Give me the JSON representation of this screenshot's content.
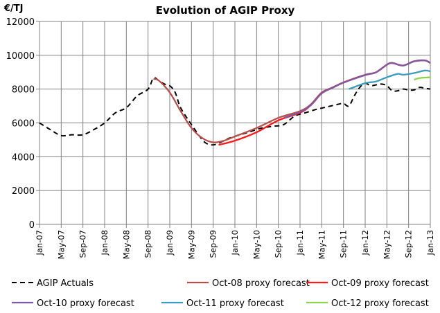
{
  "chart_data": {
    "type": "line",
    "title": "Evolution of AGIP Proxy",
    "ylabel": "€/TJ",
    "xlabel": "",
    "ylim": [
      0,
      12000
    ],
    "yticks": [
      0,
      2000,
      4000,
      6000,
      8000,
      10000,
      12000
    ],
    "xlim": [
      "2007-01",
      "2013-01"
    ],
    "xticks": [
      {
        "x": "2007-01",
        "label": "Jan-07"
      },
      {
        "x": "2007-05",
        "label": "May-07"
      },
      {
        "x": "2007-09",
        "label": "Sep-07"
      },
      {
        "x": "2008-01",
        "label": "Jan-08"
      },
      {
        "x": "2008-05",
        "label": "May-08"
      },
      {
        "x": "2008-09",
        "label": "Sep-08"
      },
      {
        "x": "2009-01",
        "label": "Jan-09"
      },
      {
        "x": "2009-05",
        "label": "May-09"
      },
      {
        "x": "2009-09",
        "label": "Sep-09"
      },
      {
        "x": "2010-01",
        "label": "Jan-10"
      },
      {
        "x": "2010-05",
        "label": "May-10"
      },
      {
        "x": "2010-09",
        "label": "Sep-10"
      },
      {
        "x": "2011-01",
        "label": "Jan-11"
      },
      {
        "x": "2011-05",
        "label": "May-11"
      },
      {
        "x": "2011-09",
        "label": "Sep-11"
      },
      {
        "x": "2012-01",
        "label": "Jan-12"
      },
      {
        "x": "2012-05",
        "label": "May-12"
      },
      {
        "x": "2012-09",
        "label": "Sep-12"
      },
      {
        "x": "2013-01",
        "label": "Jan-13"
      }
    ],
    "grid": true,
    "legend_position": "bottom",
    "series": [
      {
        "name": "AGIP Actuals",
        "color": "#000000",
        "dashed": true,
        "points": [
          [
            "2007-01",
            6000
          ],
          [
            "2007-03",
            5600
          ],
          [
            "2007-05",
            5250
          ],
          [
            "2007-07",
            5300
          ],
          [
            "2007-09",
            5300
          ],
          [
            "2007-11",
            5600
          ],
          [
            "2008-01",
            6000
          ],
          [
            "2008-03",
            6600
          ],
          [
            "2008-05",
            6900
          ],
          [
            "2008-07",
            7600
          ],
          [
            "2008-09",
            8000
          ],
          [
            "2008-10",
            8650
          ],
          [
            "2008-11",
            8500
          ],
          [
            "2008-12",
            8300
          ],
          [
            "2009-01",
            8200
          ],
          [
            "2009-02",
            7800
          ],
          [
            "2009-03",
            6900
          ],
          [
            "2009-05",
            5900
          ],
          [
            "2009-07",
            5000
          ],
          [
            "2009-08",
            4750
          ],
          [
            "2009-09",
            4700
          ],
          [
            "2009-10",
            4800
          ],
          [
            "2009-12",
            5100
          ],
          [
            "2010-02",
            5300
          ],
          [
            "2010-04",
            5500
          ],
          [
            "2010-06",
            5700
          ],
          [
            "2010-08",
            5800
          ],
          [
            "2010-10",
            5900
          ],
          [
            "2010-12",
            6400
          ],
          [
            "2011-02",
            6600
          ],
          [
            "2011-04",
            6800
          ],
          [
            "2011-06",
            6950
          ],
          [
            "2011-08",
            7100
          ],
          [
            "2011-09",
            7150
          ],
          [
            "2011-10",
            7000
          ],
          [
            "2011-11",
            7600
          ],
          [
            "2011-12",
            8100
          ],
          [
            "2012-01",
            8350
          ],
          [
            "2012-02",
            8200
          ],
          [
            "2012-03",
            8250
          ],
          [
            "2012-04",
            8300
          ],
          [
            "2012-05",
            8200
          ],
          [
            "2012-06",
            7900
          ],
          [
            "2012-07",
            7900
          ],
          [
            "2012-08",
            8000
          ],
          [
            "2012-09",
            7950
          ],
          [
            "2012-10",
            7950
          ],
          [
            "2012-11",
            8100
          ],
          [
            "2012-12",
            8050
          ],
          [
            "2013-01",
            8000
          ]
        ]
      },
      {
        "name": "Oct-08 proxy forecast",
        "color": "#b5504b",
        "points": [
          [
            "2008-10",
            8600
          ],
          [
            "2008-11",
            8500
          ],
          [
            "2009-01",
            7800
          ],
          [
            "2009-03",
            6700
          ],
          [
            "2009-05",
            5700
          ],
          [
            "2009-07",
            5100
          ],
          [
            "2009-09",
            4850
          ],
          [
            "2009-11",
            4950
          ],
          [
            "2010-01",
            5200
          ],
          [
            "2010-05",
            5700
          ],
          [
            "2010-09",
            6300
          ],
          [
            "2011-01",
            6700
          ],
          [
            "2011-03",
            7100
          ],
          [
            "2011-05",
            7800
          ],
          [
            "2011-07",
            8100
          ],
          [
            "2011-09",
            8400
          ],
          [
            "2012-01",
            8850
          ],
          [
            "2012-03",
            9000
          ],
          [
            "2012-05",
            9450
          ],
          [
            "2012-06",
            9550
          ],
          [
            "2012-08",
            9400
          ],
          [
            "2012-10",
            9650
          ],
          [
            "2012-12",
            9700
          ],
          [
            "2013-01",
            9550
          ]
        ]
      },
      {
        "name": "Oct-09 proxy forecast",
        "color": "#ff1a1a",
        "points": [
          [
            "2009-10",
            4700
          ],
          [
            "2010-01",
            4950
          ],
          [
            "2010-05",
            5450
          ],
          [
            "2010-09",
            6150
          ],
          [
            "2011-01",
            6600
          ],
          [
            "2011-03",
            7050
          ],
          [
            "2011-05",
            7750
          ],
          [
            "2011-07",
            8080
          ],
          [
            "2011-09",
            8380
          ],
          [
            "2012-01",
            8830
          ],
          [
            "2012-03",
            8990
          ],
          [
            "2012-05",
            9440
          ],
          [
            "2012-06",
            9540
          ],
          [
            "2012-08",
            9390
          ],
          [
            "2012-10",
            9640
          ],
          [
            "2012-12",
            9690
          ],
          [
            "2013-01",
            9540
          ]
        ]
      },
      {
        "name": "Oct-10 proxy forecast",
        "color": "#7d5aa6",
        "points": [
          [
            "2010-10",
            6300
          ],
          [
            "2011-01",
            6650
          ],
          [
            "2011-03",
            7050
          ],
          [
            "2011-05",
            7750
          ],
          [
            "2011-07",
            8080
          ],
          [
            "2011-09",
            8380
          ],
          [
            "2012-01",
            8830
          ],
          [
            "2012-03",
            8990
          ],
          [
            "2012-05",
            9440
          ],
          [
            "2012-06",
            9540
          ],
          [
            "2012-08",
            9390
          ],
          [
            "2012-10",
            9640
          ],
          [
            "2012-12",
            9690
          ],
          [
            "2013-01",
            9540
          ]
        ]
      },
      {
        "name": "Oct-11 proxy forecast",
        "color": "#3c9cbf",
        "points": [
          [
            "2011-10",
            8000
          ],
          [
            "2012-01",
            8350
          ],
          [
            "2012-03",
            8450
          ],
          [
            "2012-05",
            8700
          ],
          [
            "2012-07",
            8900
          ],
          [
            "2012-08",
            8850
          ],
          [
            "2012-10",
            8950
          ],
          [
            "2012-12",
            9100
          ],
          [
            "2013-01",
            9050
          ]
        ]
      },
      {
        "name": "Oct-12 proxy forecast",
        "color": "#8ed14e",
        "points": [
          [
            "2012-10",
            8550
          ],
          [
            "2012-11",
            8650
          ],
          [
            "2013-01",
            8700
          ]
        ]
      }
    ]
  }
}
